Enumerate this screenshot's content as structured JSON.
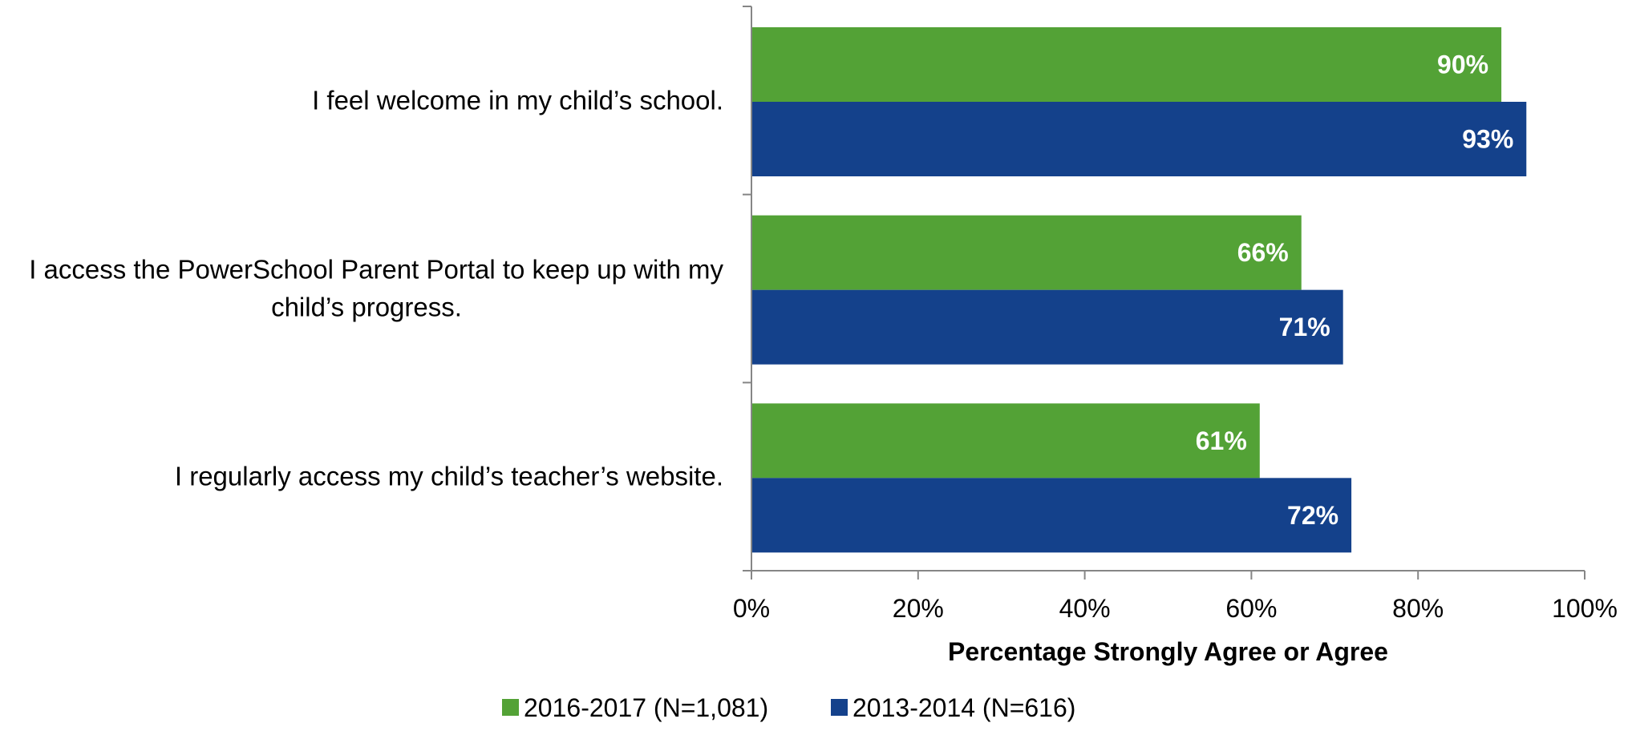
{
  "chart_data": {
    "type": "bar",
    "orientation": "horizontal",
    "categories": [
      [
        "I feel welcome in my child’s school."
      ],
      [
        "I access the PowerSchool Parent Portal to keep up with my",
        "child’s progress."
      ],
      [
        "I regularly access my child’s teacher’s website."
      ]
    ],
    "series": [
      {
        "name": "2016-2017 (N=1,081)",
        "color": "#53a236",
        "values": [
          90,
          66,
          61
        ],
        "labels": [
          "90%",
          "66%",
          "61%"
        ]
      },
      {
        "name": "2013-2014 (N=616)",
        "color": "#14418b",
        "values": [
          93,
          71,
          72
        ],
        "labels": [
          "93%",
          "71%",
          "72%"
        ]
      }
    ],
    "xlim": [
      0,
      100
    ],
    "xticks": [
      0,
      20,
      40,
      60,
      80,
      100
    ],
    "xtick_labels": [
      "0%",
      "20%",
      "40%",
      "60%",
      "80%",
      "100%"
    ],
    "xlabel": "Percentage Strongly Agree or Agree",
    "ylabel": "",
    "title": "",
    "grid": false,
    "legend_position": "bottom-center"
  }
}
